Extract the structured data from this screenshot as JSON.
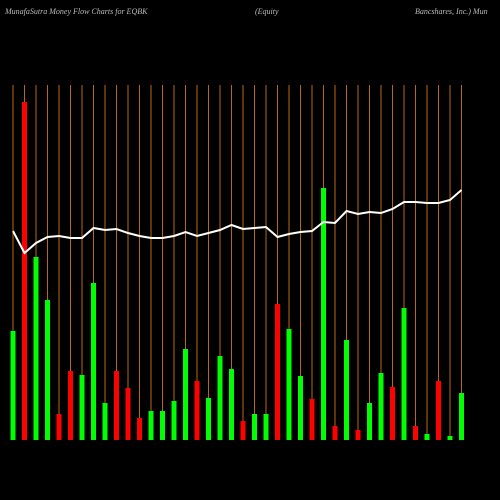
{
  "chart_data": {
    "type": "bar",
    "title": [
      "MunafaSutra  Money Flow  Charts for EQBK",
      "(Equity",
      "Bancshares, Inc.) Mun"
    ],
    "ylim": [
      0,
      360
    ],
    "guide_color": "#b8690f",
    "series": [
      {
        "colors": [
          "#00ff00",
          "#ff0000",
          "#00ff00",
          "#00ff00",
          "#ff0000",
          "#ff0000",
          "#00ff00",
          "#00ff00",
          "#00ff00",
          "#ff0000",
          "#ff0000",
          "#ff0000",
          "#00ff00",
          "#00ff00",
          "#00ff00",
          "#00ff00",
          "#ff0000",
          "#00ff00",
          "#00ff00",
          "#00ff00",
          "#ff0000",
          "#00ff00",
          "#00ff00",
          "#ff0000",
          "#00ff00",
          "#00ff00",
          "#ff0000",
          "#00ff00",
          "#ff0000",
          "#00ff00",
          "#ff0000",
          "#00ff00",
          "#00ff00",
          "#ff0000",
          "#00ff00",
          "#ff0000",
          "#00ff00",
          "#ff0000",
          "#00ff00",
          "#00ff00"
        ],
        "values": [
          109,
          338,
          183,
          140,
          26,
          69,
          65,
          157,
          37,
          69,
          52,
          22,
          29,
          29,
          39,
          91,
          59,
          42,
          84,
          71,
          19,
          26,
          26,
          136,
          111,
          64,
          41,
          252,
          14,
          100,
          10,
          37,
          67,
          53,
          132,
          14,
          6,
          59,
          4,
          47
        ]
      },
      {
        "color": "#ffffff",
        "values": [
          209,
          187,
          197,
          203,
          204,
          202,
          202,
          212,
          210,
          211,
          207,
          204,
          202,
          202,
          204,
          208,
          204,
          207,
          210,
          215,
          211,
          212,
          213,
          203,
          206,
          208,
          209,
          218,
          217,
          229,
          226,
          228,
          227,
          231,
          238,
          238,
          237,
          237,
          240,
          250
        ]
      }
    ]
  }
}
